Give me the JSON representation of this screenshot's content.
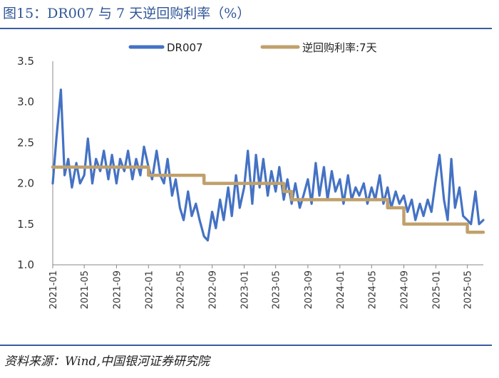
{
  "title": "图15：DR007 与 7 天逆回购利率（%）",
  "source": "资料来源：Wind,中国银河证券研究院",
  "colors": {
    "dr007": "#4472c4",
    "reverse_repo": "#c0a06c",
    "rule": "#3a5ba0",
    "title": "#2f5597"
  },
  "chart_data": {
    "type": "line",
    "ylim": [
      1.0,
      3.5
    ],
    "yticks": [
      "1.0",
      "1.5",
      "2.0",
      "2.5",
      "3.0",
      "3.5"
    ],
    "xlim": [
      "2021-01",
      "2025-07"
    ],
    "xticks": [
      "2021-01",
      "2021-05",
      "2021-09",
      "2022-01",
      "2022-05",
      "2022-09",
      "2023-01",
      "2023-05",
      "2023-09",
      "2024-01",
      "2024-05",
      "2024-09",
      "2025-01",
      "2025-05"
    ],
    "legend": [
      "DR007",
      "逆回购利率:7天"
    ],
    "legend_position": "top",
    "series": [
      {
        "name": "DR007",
        "x": [
          "2021-01",
          "2021-01-15",
          "2021-02",
          "2021-02-15",
          "2021-03",
          "2021-03-15",
          "2021-04",
          "2021-04-15",
          "2021-05",
          "2021-05-15",
          "2021-06",
          "2021-06-15",
          "2021-07",
          "2021-07-15",
          "2021-08",
          "2021-08-15",
          "2021-09",
          "2021-09-15",
          "2021-10",
          "2021-10-15",
          "2021-11",
          "2021-11-15",
          "2021-12",
          "2021-12-15",
          "2022-01",
          "2022-01-15",
          "2022-02",
          "2022-02-15",
          "2022-03",
          "2022-03-15",
          "2022-04",
          "2022-04-15",
          "2022-05",
          "2022-05-15",
          "2022-06",
          "2022-06-15",
          "2022-07",
          "2022-07-15",
          "2022-08",
          "2022-08-15",
          "2022-09",
          "2022-09-15",
          "2022-10",
          "2022-10-15",
          "2022-11",
          "2022-11-15",
          "2022-12",
          "2022-12-15",
          "2023-01",
          "2023-01-15",
          "2023-02",
          "2023-02-15",
          "2023-03",
          "2023-03-15",
          "2023-04",
          "2023-04-15",
          "2023-05",
          "2023-05-15",
          "2023-06",
          "2023-06-15",
          "2023-07",
          "2023-07-15",
          "2023-08",
          "2023-08-15",
          "2023-09",
          "2023-09-15",
          "2023-10",
          "2023-10-15",
          "2023-11",
          "2023-11-15",
          "2023-12",
          "2023-12-15",
          "2024-01",
          "2024-01-15",
          "2024-02",
          "2024-02-15",
          "2024-03",
          "2024-03-15",
          "2024-04",
          "2024-04-15",
          "2024-05",
          "2024-05-15",
          "2024-06",
          "2024-06-15",
          "2024-07",
          "2024-07-15",
          "2024-08",
          "2024-08-15",
          "2024-09",
          "2024-09-15",
          "2024-10",
          "2024-10-15",
          "2024-11",
          "2024-11-15",
          "2024-12",
          "2024-12-15",
          "2025-01",
          "2025-01-15",
          "2025-02",
          "2025-02-15",
          "2025-03",
          "2025-03-15",
          "2025-04",
          "2025-04-15",
          "2025-05",
          "2025-05-15",
          "2025-06",
          "2025-06-15",
          "2025-07"
        ],
        "values": [
          2.0,
          2.55,
          3.15,
          2.1,
          2.3,
          1.95,
          2.25,
          2.0,
          2.1,
          2.55,
          2.0,
          2.3,
          2.15,
          2.4,
          2.05,
          2.35,
          2.0,
          2.3,
          2.15,
          2.4,
          2.05,
          2.3,
          2.1,
          2.45,
          2.2,
          2.05,
          2.4,
          2.1,
          2.0,
          2.3,
          1.85,
          2.05,
          1.7,
          1.55,
          1.9,
          1.6,
          1.75,
          1.55,
          1.35,
          1.3,
          1.65,
          1.45,
          1.8,
          1.55,
          1.95,
          1.6,
          2.1,
          1.7,
          1.95,
          2.4,
          1.75,
          2.35,
          1.95,
          2.3,
          1.85,
          2.15,
          1.9,
          2.2,
          1.8,
          2.05,
          1.75,
          2.0,
          1.7,
          1.85,
          2.05,
          1.75,
          2.25,
          1.85,
          2.2,
          1.8,
          2.15,
          1.9,
          2.05,
          1.75,
          2.1,
          1.8,
          1.95,
          1.85,
          2.0,
          1.75,
          1.95,
          1.8,
          2.1,
          1.75,
          1.95,
          1.7,
          1.9,
          1.75,
          1.85,
          1.65,
          1.8,
          1.55,
          1.75,
          1.6,
          1.8,
          1.65,
          2.05,
          2.35,
          1.8,
          1.55,
          2.3,
          1.7,
          1.95,
          1.6,
          1.55,
          1.5,
          1.9,
          1.5,
          1.55
        ]
      },
      {
        "name": "逆回购利率:7天",
        "x": [
          "2021-01",
          "2022-01",
          "2022-01",
          "2022-08",
          "2022-08",
          "2023-06",
          "2023-06",
          "2023-07",
          "2023-07",
          "2024-07",
          "2024-07",
          "2024-09",
          "2024-09",
          "2025-05",
          "2025-05",
          "2025-07"
        ],
        "values": [
          2.2,
          2.2,
          2.1,
          2.1,
          2.0,
          2.0,
          1.9,
          1.9,
          1.8,
          1.8,
          1.7,
          1.7,
          1.5,
          1.5,
          1.4,
          1.4
        ]
      }
    ]
  }
}
